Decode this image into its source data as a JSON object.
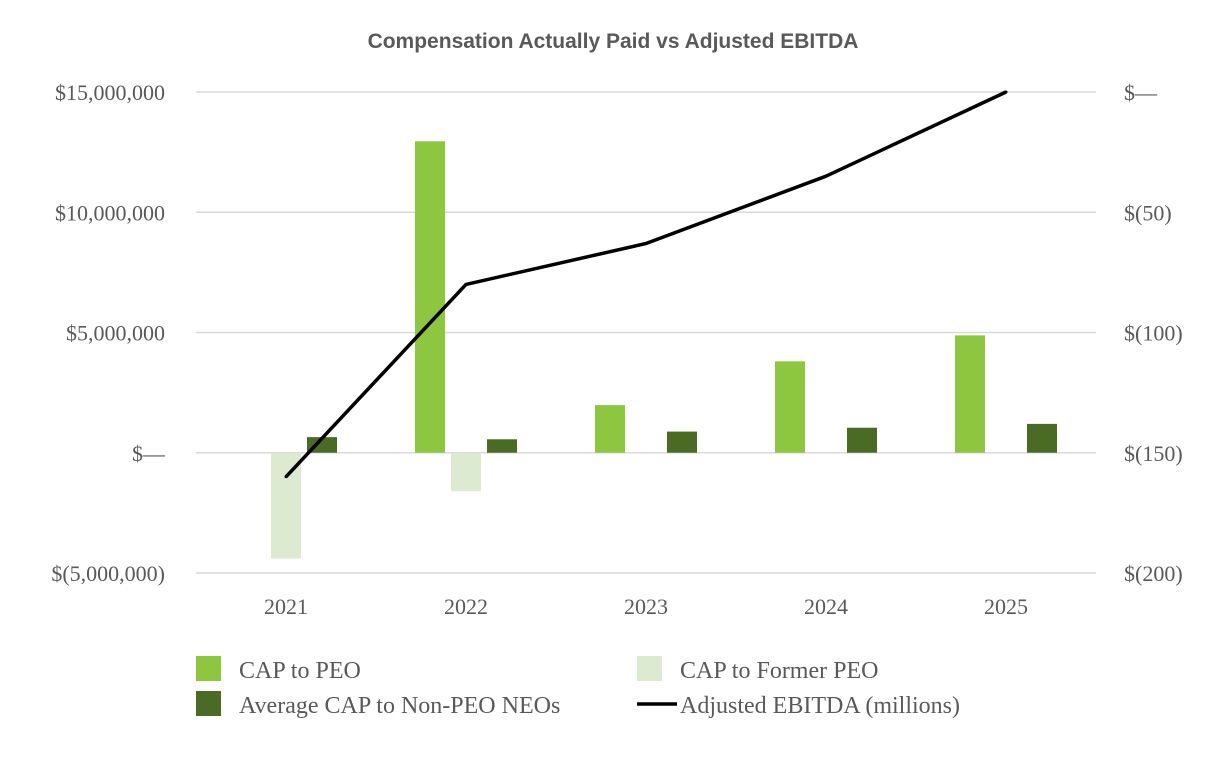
{
  "chart_data": {
    "type": "bar",
    "title": "Compensation Actually Paid vs Adjusted EBITDA",
    "categories": [
      "2021",
      "2022",
      "2023",
      "2024",
      "2025"
    ],
    "ylim": [
      -5000000,
      15000000
    ],
    "y2lim": [
      -200,
      0
    ],
    "y_ticks": [
      {
        "value": 15000000,
        "label": "$15,000,000"
      },
      {
        "value": 10000000,
        "label": "$10,000,000"
      },
      {
        "value": 5000000,
        "label": "$5,000,000"
      },
      {
        "value": 0,
        "label": "$—"
      },
      {
        "value": -5000000,
        "label": "$(5,000,000)"
      }
    ],
    "y2_ticks": [
      {
        "value": 0,
        "label": "$—"
      },
      {
        "value": -50,
        "label": "$(50)"
      },
      {
        "value": -100,
        "label": "$(100)"
      },
      {
        "value": -150,
        "label": "$(150)"
      },
      {
        "value": -200,
        "label": "$(200)"
      }
    ],
    "grid": true,
    "legend_position": "bottom",
    "series": [
      {
        "name": "CAP to PEO",
        "type": "bar",
        "axis": "left",
        "color": "#8dc63f",
        "values": [
          null,
          12950000,
          1980000,
          3800000,
          4880000
        ]
      },
      {
        "name": "CAP to Former PEO",
        "type": "bar",
        "axis": "left",
        "color": "#dcead0",
        "values": [
          -4400000,
          -1600000,
          null,
          null,
          null
        ]
      },
      {
        "name": "Average CAP to Non-PEO NEOs",
        "type": "bar",
        "axis": "left",
        "color": "#4a6b24",
        "values": [
          650000,
          560000,
          880000,
          1040000,
          1200000
        ]
      },
      {
        "name": "Adjusted EBITDA (millions)",
        "type": "line",
        "axis": "right",
        "color": "#000000",
        "values": [
          -160,
          -80,
          -63,
          -35,
          0
        ]
      }
    ]
  }
}
